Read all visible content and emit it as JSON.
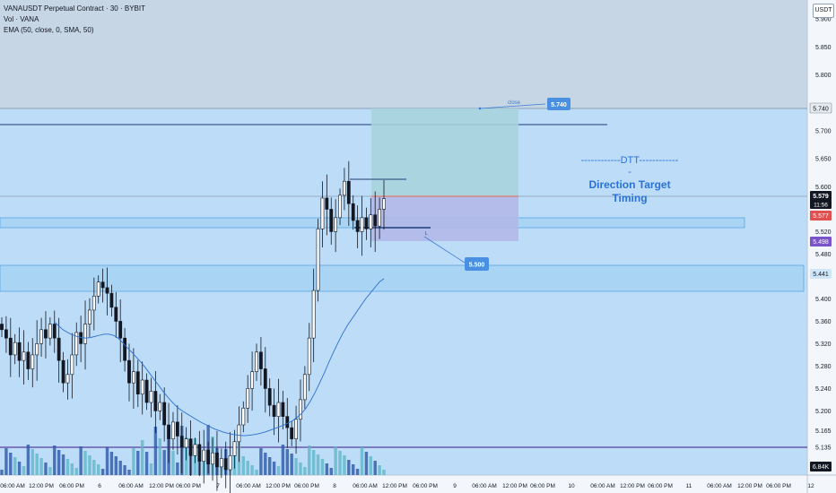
{
  "legend": {
    "symbol_line": "VANAUSDT Perpetual Contract · 30 · BYBIT",
    "volume_line": "Vol · VANA",
    "ema_line": "EMA (50, close, 0, SMA, 50)"
  },
  "currency_unit": "USDT",
  "annotation": {
    "line1": "------------DTT-------------",
    "line2": "Direction Target Timing"
  },
  "colors": {
    "background": "#bcdcf7",
    "axis_background": "#f3f7fb",
    "candle_up": "#131722",
    "ema": "#2d6fcf",
    "dtt_text": "#2b72d8",
    "target_label": "#4a90e2",
    "last_price": "#131722",
    "position_label": "#e05050",
    "stop_label": "#7a52c9",
    "volume_up": "#5fb7c8",
    "volume_down": "#2d58a8",
    "support_line": "#5a3fa0"
  },
  "chart_data": {
    "type": "candlestick",
    "title": "VANAUSDT Perpetual Contract · 30 · BYBIT",
    "price_axis_ticks": [
      "5.900",
      "5.850",
      "5.800",
      "5.740",
      "5.700",
      "5.650",
      "5.600",
      "5.579",
      "5.520",
      "5.498",
      "5.480",
      "5.441",
      "5.400",
      "5.360",
      "5.320",
      "5.280",
      "5.240",
      "5.200",
      "5.165",
      "5.135"
    ],
    "time_axis_ticks": [
      "06:00 AM",
      "12:00 PM",
      "06:00 PM",
      "6",
      "06:00 AM",
      "12:00 PM",
      "06:00 PM",
      "7",
      "06:00 AM",
      "12:00 PM",
      "06:00 PM",
      "8",
      "06:00 AM",
      "12:00 PM",
      "06:00 PM",
      "9",
      "06:00 AM",
      "12:00 PM",
      "06:00 PM",
      "10",
      "06:00 AM",
      "12:00 PM",
      "06:00 PM",
      "11",
      "06:00 AM",
      "12:00 PM",
      "06:00 PM",
      "12"
    ],
    "price_labels": {
      "target": "5.740",
      "last_price": "5.579",
      "countdown": "11:56",
      "position": "5.577",
      "stop": "5.498",
      "zone": "5.441",
      "volume": "6.84K"
    },
    "drawings": {
      "target_callout": "5.740",
      "target_note": "close",
      "stop_callout": "5.500",
      "stop_note": "L"
    },
    "closes": [
      5.345,
      5.33,
      5.3,
      5.322,
      5.29,
      5.305,
      5.275,
      5.3,
      5.32,
      5.345,
      5.33,
      5.355,
      5.33,
      5.29,
      5.25,
      5.265,
      5.3,
      5.34,
      5.32,
      5.355,
      5.38,
      5.405,
      5.43,
      5.42,
      5.41,
      5.385,
      5.36,
      5.33,
      5.29,
      5.25,
      5.27,
      5.23,
      5.255,
      5.215,
      5.235,
      5.2,
      5.215,
      5.175,
      5.15,
      5.18,
      5.155,
      5.135,
      5.15,
      5.12,
      5.14,
      5.11,
      5.13,
      5.105,
      5.125,
      5.1,
      5.115,
      5.095,
      5.12,
      5.145,
      5.175,
      5.205,
      5.24,
      5.27,
      5.305,
      5.275,
      5.24,
      5.21,
      5.19,
      5.215,
      5.19,
      5.17,
      5.15,
      5.185,
      5.22,
      5.265,
      5.33,
      5.415,
      5.525,
      5.58,
      5.56,
      5.52,
      5.545,
      5.585,
      5.61,
      5.57,
      5.54,
      5.52,
      5.545,
      5.525,
      5.55,
      5.53,
      5.56,
      5.579
    ],
    "ema": [
      5.36,
      5.352,
      5.345,
      5.34,
      5.336,
      5.333,
      5.331,
      5.33,
      5.331,
      5.333,
      5.335,
      5.337,
      5.337,
      5.335,
      5.33,
      5.322,
      5.313,
      5.305,
      5.296,
      5.287,
      5.277,
      5.266,
      5.255,
      5.244,
      5.233,
      5.223,
      5.214,
      5.206,
      5.2,
      5.195,
      5.19,
      5.185,
      5.18,
      5.176,
      5.172,
      5.168,
      5.165,
      5.162,
      5.16,
      5.158,
      5.157,
      5.156,
      5.156,
      5.157,
      5.158,
      5.16,
      5.162,
      5.165,
      5.168,
      5.171,
      5.174,
      5.178,
      5.182,
      5.188,
      5.195,
      5.205,
      5.218,
      5.233,
      5.25,
      5.268,
      5.287,
      5.305,
      5.322,
      5.338,
      5.352,
      5.364,
      5.376,
      5.388,
      5.4,
      5.41,
      5.42,
      5.43,
      5.436
    ],
    "grid": false,
    "legend_position": "top-left"
  }
}
